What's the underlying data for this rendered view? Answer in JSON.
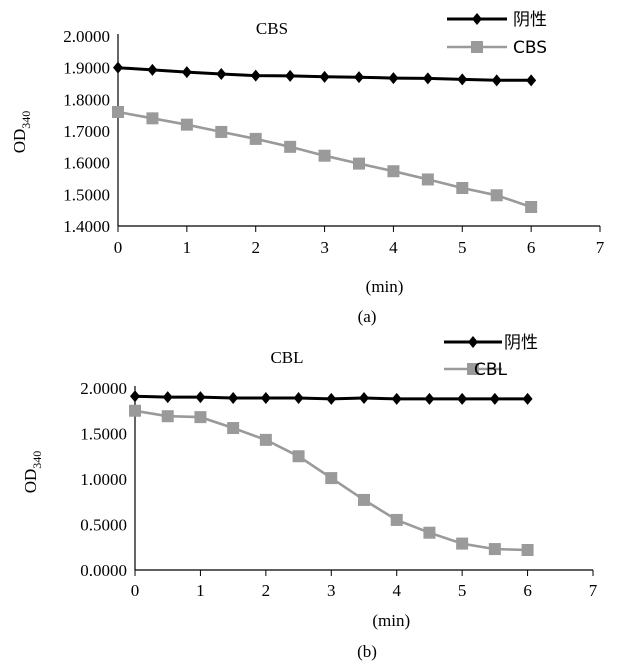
{
  "chart_data": [
    {
      "type": "line",
      "panel_label": "(a)",
      "title": "CBS",
      "xlabel": "(min)",
      "ylabel_main": "OD",
      "ylabel_sub": "340",
      "xlim": [
        0,
        7
      ],
      "ylim": [
        1.4,
        2.0
      ],
      "xticks": [
        "0",
        "1",
        "2",
        "3",
        "4",
        "5",
        "6",
        "7"
      ],
      "yticks": [
        "1.4000",
        "1.5000",
        "1.6000",
        "1.7000",
        "1.8000",
        "1.9000",
        "2.0000"
      ],
      "x": [
        0,
        0.5,
        1,
        1.5,
        2,
        2.5,
        3,
        3.5,
        4,
        4.5,
        5,
        5.5,
        6
      ],
      "series": [
        {
          "name": "阴性",
          "marker": "diamond",
          "color": "#000000",
          "values": [
            1.9,
            1.893,
            1.886,
            1.88,
            1.875,
            1.874,
            1.871,
            1.87,
            1.867,
            1.866,
            1.863,
            1.86,
            1.86
          ]
        },
        {
          "name": "CBS",
          "marker": "square",
          "color": "#9a9a9a",
          "values": [
            1.76,
            1.74,
            1.72,
            1.697,
            1.675,
            1.65,
            1.622,
            1.597,
            1.573,
            1.547,
            1.52,
            1.497,
            1.46
          ]
        }
      ]
    },
    {
      "type": "line",
      "panel_label": "(b)",
      "title": "CBL",
      "xlabel": "(min)",
      "ylabel_main": "OD",
      "ylabel_sub": "340",
      "xlim": [
        0,
        7
      ],
      "ylim": [
        0,
        2.0
      ],
      "xticks": [
        "0",
        "1",
        "2",
        "3",
        "4",
        "5",
        "6",
        "7"
      ],
      "yticks": [
        "0.0000",
        "0.5000",
        "1.0000",
        "1.5000",
        "2.0000"
      ],
      "x": [
        0,
        0.5,
        1,
        1.5,
        2,
        2.5,
        3,
        3.5,
        4,
        4.5,
        5,
        5.5,
        6
      ],
      "series": [
        {
          "name": "阴性",
          "marker": "diamond",
          "color": "#000000",
          "values": [
            1.91,
            1.9,
            1.9,
            1.89,
            1.89,
            1.89,
            1.88,
            1.89,
            1.88,
            1.88,
            1.88,
            1.88,
            1.88
          ]
        },
        {
          "name": "CBL",
          "marker": "square",
          "color": "#9a9a9a",
          "values": [
            1.75,
            1.69,
            1.68,
            1.56,
            1.43,
            1.25,
            1.01,
            0.77,
            0.55,
            0.41,
            0.29,
            0.23,
            0.22
          ]
        }
      ]
    }
  ]
}
